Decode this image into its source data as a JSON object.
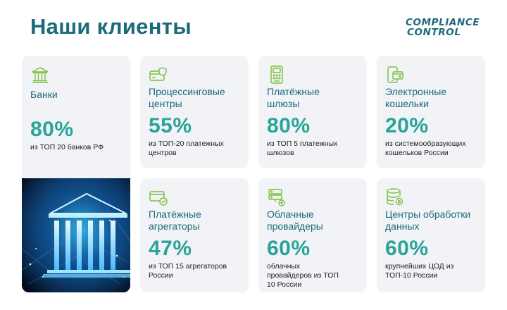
{
  "header": {
    "title": "Наши клиенты"
  },
  "logo": {
    "line1": "COMPLIANCE",
    "line2": "CONTROL"
  },
  "colors": {
    "title": "#1c6a7c",
    "accent": "#2aa39a",
    "card_bg": "#f1f3f6",
    "icon": "#7cbf3a"
  },
  "cards": [
    {
      "icon": "bank-icon",
      "name": "Банки",
      "pct": "80%",
      "desc": "из ТОП 20 банков РФ"
    },
    {
      "icon": "credit-card-shield-icon",
      "name": "Процессинговые центры",
      "pct": "55%",
      "desc": "из ТОП-20 платежных центров"
    },
    {
      "icon": "payment-terminal-icon",
      "name": "Платёжные шлюзы",
      "pct": "80%",
      "desc": "из ТОП 5 платежных шлюзов"
    },
    {
      "icon": "wallet-phone-icon",
      "name": "Электронные кошельки",
      "pct": "20%",
      "desc": "из системообразующих кошельков России"
    },
    {
      "icon": "card-aggregator-icon",
      "name": "Платёжные агрегаторы",
      "pct": "47%",
      "desc": "из ТОП 15 агрегаторов России"
    },
    {
      "icon": "server-stack-icon",
      "name": "Облачные провайдеры",
      "pct": "60%",
      "desc": "облачных провайдеров из ТОП 10 России"
    },
    {
      "icon": "database-icon",
      "name": "Центры обработки данных",
      "pct": "60%",
      "desc": "крупнейших ЦОД из ТОП-10 России"
    }
  ]
}
